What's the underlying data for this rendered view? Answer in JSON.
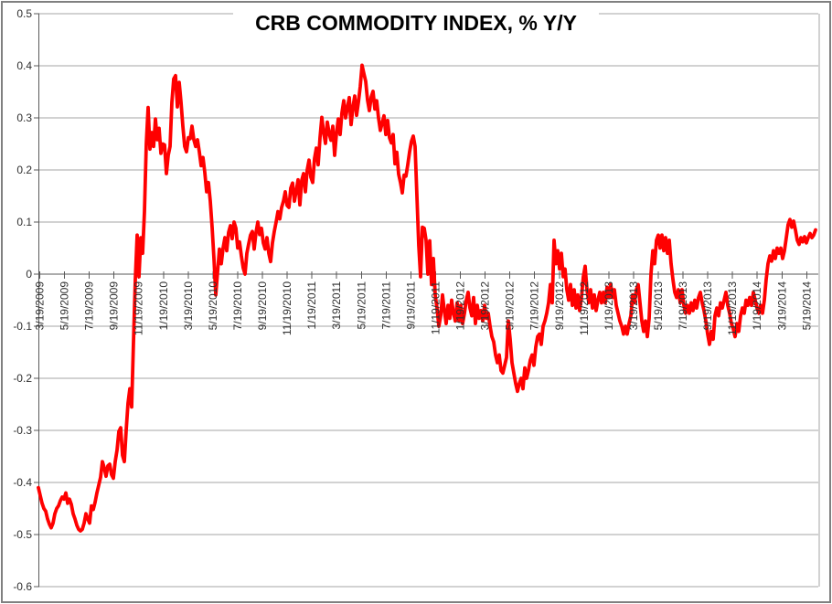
{
  "chart_data": {
    "type": "line",
    "title": "CRB COMMODITY INDEX, % Y/Y",
    "series_name": "CRB Commodity Index, % year-over-year",
    "line_color": "#FF0000",
    "background_color": "#FFFFFF",
    "gridline_color": "#A6A6A6",
    "axis_color": "#595959",
    "grid": "horizontal",
    "legend": "none",
    "ylim": [
      -0.6,
      0.5
    ],
    "y_tick_step": 0.1,
    "y_ticks": [
      "0.5",
      "0.4",
      "0.3",
      "0.2",
      "0.1",
      "0",
      "-0.1",
      "-0.2",
      "-0.3",
      "-0.4",
      "-0.5",
      "-0.6"
    ],
    "x_ticks": [
      "3/19/2009",
      "5/19/2009",
      "7/19/2009",
      "9/19/2009",
      "11/19/2009",
      "1/19/2010",
      "3/19/2010",
      "5/19/2010",
      "7/19/2010",
      "9/19/2010",
      "11/19/2010",
      "1/19/2011",
      "3/19/2011",
      "5/19/2011",
      "7/19/2011",
      "9/19/2011",
      "11/19/2011",
      "1/19/2012",
      "3/19/2012",
      "5/19/2012",
      "7/19/2012",
      "9/19/2012",
      "11/19/2012",
      "1/19/2013",
      "3/19/2013",
      "5/19/2013",
      "7/19/2013",
      "9/19/2013",
      "11/19/2013",
      "1/19/2014",
      "3/19/2014",
      "5/19/2014"
    ],
    "x_start_date": "3/19/2009",
    "x_end_date": "6/18/2014",
    "sampling": "uniform intervals of ~0.148 months (~4.5 days) between start and end dates",
    "values": [
      -0.41,
      -0.425,
      -0.44,
      -0.45,
      -0.455,
      -0.47,
      -0.48,
      -0.487,
      -0.478,
      -0.46,
      -0.45,
      -0.445,
      -0.435,
      -0.428,
      -0.432,
      -0.42,
      -0.44,
      -0.432,
      -0.442,
      -0.46,
      -0.47,
      -0.482,
      -0.49,
      -0.493,
      -0.49,
      -0.478,
      -0.46,
      -0.47,
      -0.478,
      -0.445,
      -0.452,
      -0.438,
      -0.42,
      -0.405,
      -0.39,
      -0.36,
      -0.372,
      -0.388,
      -0.368,
      -0.365,
      -0.385,
      -0.392,
      -0.36,
      -0.338,
      -0.302,
      -0.295,
      -0.348,
      -0.36,
      -0.3,
      -0.248,
      -0.22,
      -0.255,
      -0.13,
      -0.01,
      0.075,
      -0.005,
      0.07,
      0.04,
      0.12,
      0.25,
      0.32,
      0.24,
      0.272,
      0.245,
      0.298,
      0.258,
      0.28,
      0.232,
      0.25,
      0.248,
      0.193,
      0.228,
      0.245,
      0.33,
      0.375,
      0.381,
      0.321,
      0.368,
      0.33,
      0.284,
      0.245,
      0.235,
      0.262,
      0.26,
      0.284,
      0.258,
      0.245,
      0.258,
      0.235,
      0.208,
      0.224,
      0.195,
      0.158,
      0.176,
      0.14,
      0.09,
      0.03,
      -0.04,
      0.005,
      0.048,
      0.02,
      0.05,
      0.07,
      0.045,
      0.08,
      0.093,
      0.068,
      0.1,
      0.088,
      0.05,
      0.062,
      0.035,
      0.012,
      0.0,
      0.04,
      0.058,
      0.075,
      0.082,
      0.048,
      0.08,
      0.1,
      0.076,
      0.088,
      0.06,
      0.048,
      0.07,
      0.04,
      0.024,
      0.06,
      0.082,
      0.1,
      0.12,
      0.106,
      0.128,
      0.14,
      0.158,
      0.132,
      0.128,
      0.165,
      0.175,
      0.14,
      0.16,
      0.181,
      0.133,
      0.18,
      0.193,
      0.158,
      0.2,
      0.219,
      0.186,
      0.176,
      0.222,
      0.242,
      0.21,
      0.262,
      0.301,
      0.272,
      0.251,
      0.292,
      0.27,
      0.257,
      0.284,
      0.228,
      0.27,
      0.298,
      0.268,
      0.31,
      0.333,
      0.3,
      0.32,
      0.339,
      0.287,
      0.32,
      0.342,
      0.305,
      0.33,
      0.36,
      0.401,
      0.385,
      0.37,
      0.334,
      0.314,
      0.34,
      0.351,
      0.317,
      0.333,
      0.3,
      0.276,
      0.29,
      0.304,
      0.268,
      0.295,
      0.262,
      0.252,
      0.268,
      0.212,
      0.234,
      0.192,
      0.176,
      0.156,
      0.19,
      0.188,
      0.21,
      0.235,
      0.255,
      0.265,
      0.245,
      0.15,
      0.055,
      -0.005,
      0.09,
      0.088,
      0.065,
      0.0,
      0.064,
      -0.02,
      0.03,
      -0.04,
      -0.065,
      -0.1,
      -0.08,
      -0.04,
      -0.07,
      -0.095,
      -0.06,
      -0.085,
      -0.05,
      -0.075,
      -0.09,
      -0.055,
      -0.09,
      -0.06,
      -0.095,
      -0.075,
      -0.05,
      -0.035,
      -0.065,
      -0.08,
      -0.045,
      -0.095,
      -0.06,
      -0.085,
      -0.07,
      -0.09,
      -0.06,
      -0.085,
      -0.075,
      -0.1,
      -0.12,
      -0.13,
      -0.155,
      -0.17,
      -0.155,
      -0.185,
      -0.19,
      -0.175,
      -0.16,
      -0.09,
      -0.125,
      -0.17,
      -0.19,
      -0.21,
      -0.225,
      -0.21,
      -0.2,
      -0.22,
      -0.18,
      -0.2,
      -0.185,
      -0.165,
      -0.155,
      -0.175,
      -0.14,
      -0.12,
      -0.115,
      -0.135,
      -0.1,
      -0.09,
      -0.075,
      -0.055,
      -0.02,
      -0.055,
      0.065,
      0.02,
      0.045,
      0.01,
      0.04,
      -0.005,
      0.01,
      -0.03,
      -0.05,
      -0.02,
      -0.06,
      -0.03,
      -0.065,
      -0.04,
      -0.07,
      -0.045,
      -0.005,
      0.015,
      -0.03,
      -0.055,
      -0.03,
      -0.065,
      -0.04,
      -0.07,
      -0.05,
      -0.035,
      -0.055,
      -0.035,
      -0.055,
      -0.025,
      -0.045,
      -0.02,
      -0.045,
      -0.03,
      -0.06,
      -0.075,
      -0.09,
      -0.1,
      -0.115,
      -0.1,
      -0.115,
      -0.095,
      -0.08,
      -0.04,
      -0.055,
      -0.03,
      -0.02,
      -0.055,
      -0.09,
      -0.11,
      -0.09,
      -0.12,
      -0.085,
      0.0,
      0.045,
      0.02,
      0.065,
      0.075,
      0.05,
      0.075,
      0.045,
      0.07,
      0.04,
      0.065,
      0.02,
      -0.01,
      -0.035,
      -0.045,
      -0.03,
      -0.055,
      -0.03,
      -0.06,
      -0.075,
      -0.06,
      -0.075,
      -0.055,
      -0.07,
      -0.05,
      -0.065,
      -0.045,
      -0.035,
      -0.055,
      -0.07,
      -0.09,
      -0.115,
      -0.135,
      -0.11,
      -0.125,
      -0.08,
      -0.065,
      -0.08,
      -0.055,
      -0.065,
      -0.05,
      -0.035,
      -0.06,
      -0.075,
      -0.095,
      -0.105,
      -0.12,
      -0.095,
      -0.11,
      -0.08,
      -0.065,
      -0.075,
      -0.05,
      -0.06,
      -0.045,
      -0.06,
      -0.035,
      -0.05,
      -0.065,
      -0.075,
      -0.06,
      -0.075,
      -0.05,
      -0.01,
      0.02,
      0.035,
      0.025,
      0.045,
      0.03,
      0.05,
      0.04,
      0.05,
      0.03,
      0.045,
      0.07,
      0.095,
      0.105,
      0.09,
      0.102,
      0.085,
      0.065,
      0.057,
      0.07,
      0.062,
      0.072,
      0.06,
      0.07,
      0.078,
      0.07,
      0.075,
      0.085
    ]
  }
}
